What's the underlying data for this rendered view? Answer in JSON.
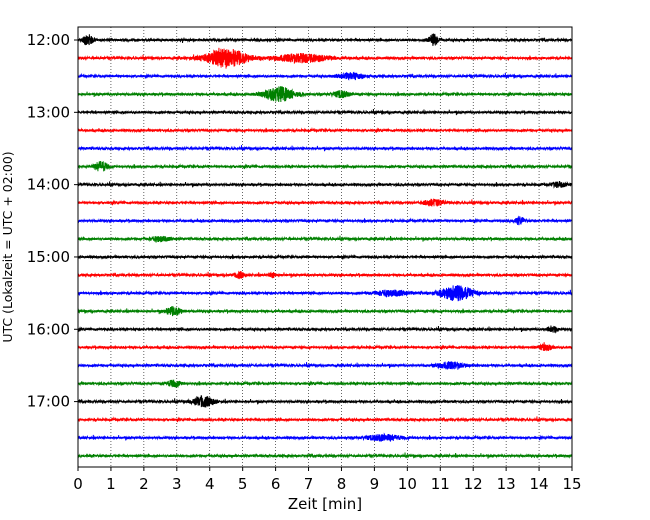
{
  "chart_data": {
    "type": "line",
    "xlabel": "Zeit  [min]",
    "ylabel": "UTC (Lokalzeit = UTC + 02:00)",
    "xlim": [
      0,
      15
    ],
    "x_ticks": [
      0,
      1,
      2,
      3,
      4,
      5,
      6,
      7,
      8,
      9,
      10,
      11,
      12,
      13,
      14,
      15
    ],
    "y_tick_labels": [
      "12:00",
      "13:00",
      "14:00",
      "15:00",
      "16:00",
      "17:00"
    ],
    "grid": "vertical dotted",
    "trace_colors": [
      "#000000",
      "#ff0000",
      "#0000ff",
      "#008000"
    ],
    "row_start_times": [
      "12:00",
      "12:15",
      "12:30",
      "12:45",
      "13:00",
      "13:15",
      "13:30",
      "13:45",
      "14:00",
      "14:15",
      "14:30",
      "14:45",
      "15:00",
      "15:15",
      "15:30",
      "15:45",
      "16:00",
      "16:15",
      "16:30",
      "16:45",
      "17:00",
      "17:15",
      "17:30",
      "17:45"
    ],
    "events": [
      {
        "row": 0,
        "minute": 0.3,
        "amplitude": 0.6,
        "duration": 0.3
      },
      {
        "row": 0,
        "minute": 10.8,
        "amplitude": 0.6,
        "duration": 0.3
      },
      {
        "row": 1,
        "minute": 4.5,
        "amplitude": 1.0,
        "duration": 1.3
      },
      {
        "row": 1,
        "minute": 6.8,
        "amplitude": 0.45,
        "duration": 1.6
      },
      {
        "row": 2,
        "minute": 8.3,
        "amplitude": 0.3,
        "duration": 0.8
      },
      {
        "row": 3,
        "minute": 6.1,
        "amplitude": 0.8,
        "duration": 0.9
      },
      {
        "row": 3,
        "minute": 8.0,
        "amplitude": 0.35,
        "duration": 0.5
      },
      {
        "row": 7,
        "minute": 0.7,
        "amplitude": 0.55,
        "duration": 0.4
      },
      {
        "row": 8,
        "minute": 14.6,
        "amplitude": 0.3,
        "duration": 0.4
      },
      {
        "row": 9,
        "minute": 10.8,
        "amplitude": 0.35,
        "duration": 0.6
      },
      {
        "row": 10,
        "minute": 13.4,
        "amplitude": 0.4,
        "duration": 0.3
      },
      {
        "row": 11,
        "minute": 2.5,
        "amplitude": 0.25,
        "duration": 0.6
      },
      {
        "row": 13,
        "minute": 4.9,
        "amplitude": 0.35,
        "duration": 0.3
      },
      {
        "row": 13,
        "minute": 5.9,
        "amplitude": 0.3,
        "duration": 0.2
      },
      {
        "row": 14,
        "minute": 11.5,
        "amplitude": 0.8,
        "duration": 1.0
      },
      {
        "row": 14,
        "minute": 9.5,
        "amplitude": 0.3,
        "duration": 1.0
      },
      {
        "row": 15,
        "minute": 2.9,
        "amplitude": 0.45,
        "duration": 0.5
      },
      {
        "row": 16,
        "minute": 14.4,
        "amplitude": 0.35,
        "duration": 0.3
      },
      {
        "row": 17,
        "minute": 14.2,
        "amplitude": 0.35,
        "duration": 0.4
      },
      {
        "row": 18,
        "minute": 11.3,
        "amplitude": 0.35,
        "duration": 0.8
      },
      {
        "row": 19,
        "minute": 2.9,
        "amplitude": 0.35,
        "duration": 0.4
      },
      {
        "row": 20,
        "minute": 3.8,
        "amplitude": 0.6,
        "duration": 0.6
      },
      {
        "row": 22,
        "minute": 9.3,
        "amplitude": 0.35,
        "duration": 1.0
      }
    ]
  }
}
